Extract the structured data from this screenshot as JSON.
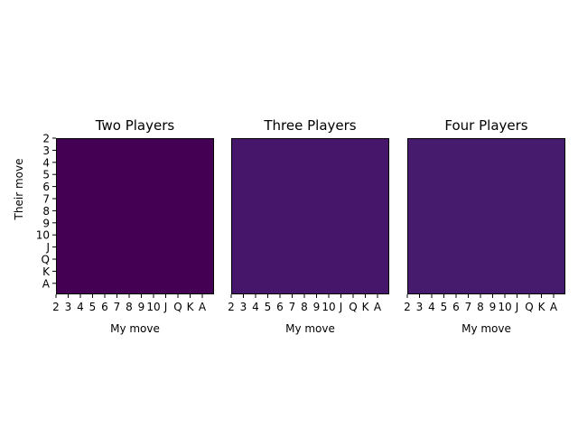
{
  "chart_data": [
    {
      "type": "heatmap",
      "title": "Two Players",
      "xlabel": "My move",
      "ylabel": "Their move",
      "x_ticks": [
        "2",
        "3",
        "4",
        "5",
        "6",
        "7",
        "8",
        "9",
        "10",
        "J",
        "Q",
        "K",
        "A"
      ],
      "y_ticks": [
        "2",
        "3",
        "4",
        "5",
        "6",
        "7",
        "8",
        "9",
        "10",
        "J",
        "Q",
        "K",
        "A"
      ],
      "fill_color": "#440154",
      "show_y_ticks": true,
      "show_ylabel": true
    },
    {
      "type": "heatmap",
      "title": "Three Players",
      "xlabel": "My move",
      "ylabel": "",
      "x_ticks": [
        "2",
        "3",
        "4",
        "5",
        "6",
        "7",
        "8",
        "9",
        "10",
        "J",
        "Q",
        "K",
        "A"
      ],
      "y_ticks": [],
      "fill_color": "#46166b",
      "show_y_ticks": false,
      "show_ylabel": false
    },
    {
      "type": "heatmap",
      "title": "Four Players",
      "xlabel": "My move",
      "ylabel": "",
      "x_ticks": [
        "2",
        "3",
        "4",
        "5",
        "6",
        "7",
        "8",
        "9",
        "10",
        "J",
        "Q",
        "K",
        "A"
      ],
      "y_ticks": [],
      "fill_color": "#461a6c",
      "show_y_ticks": false,
      "show_ylabel": false
    }
  ]
}
